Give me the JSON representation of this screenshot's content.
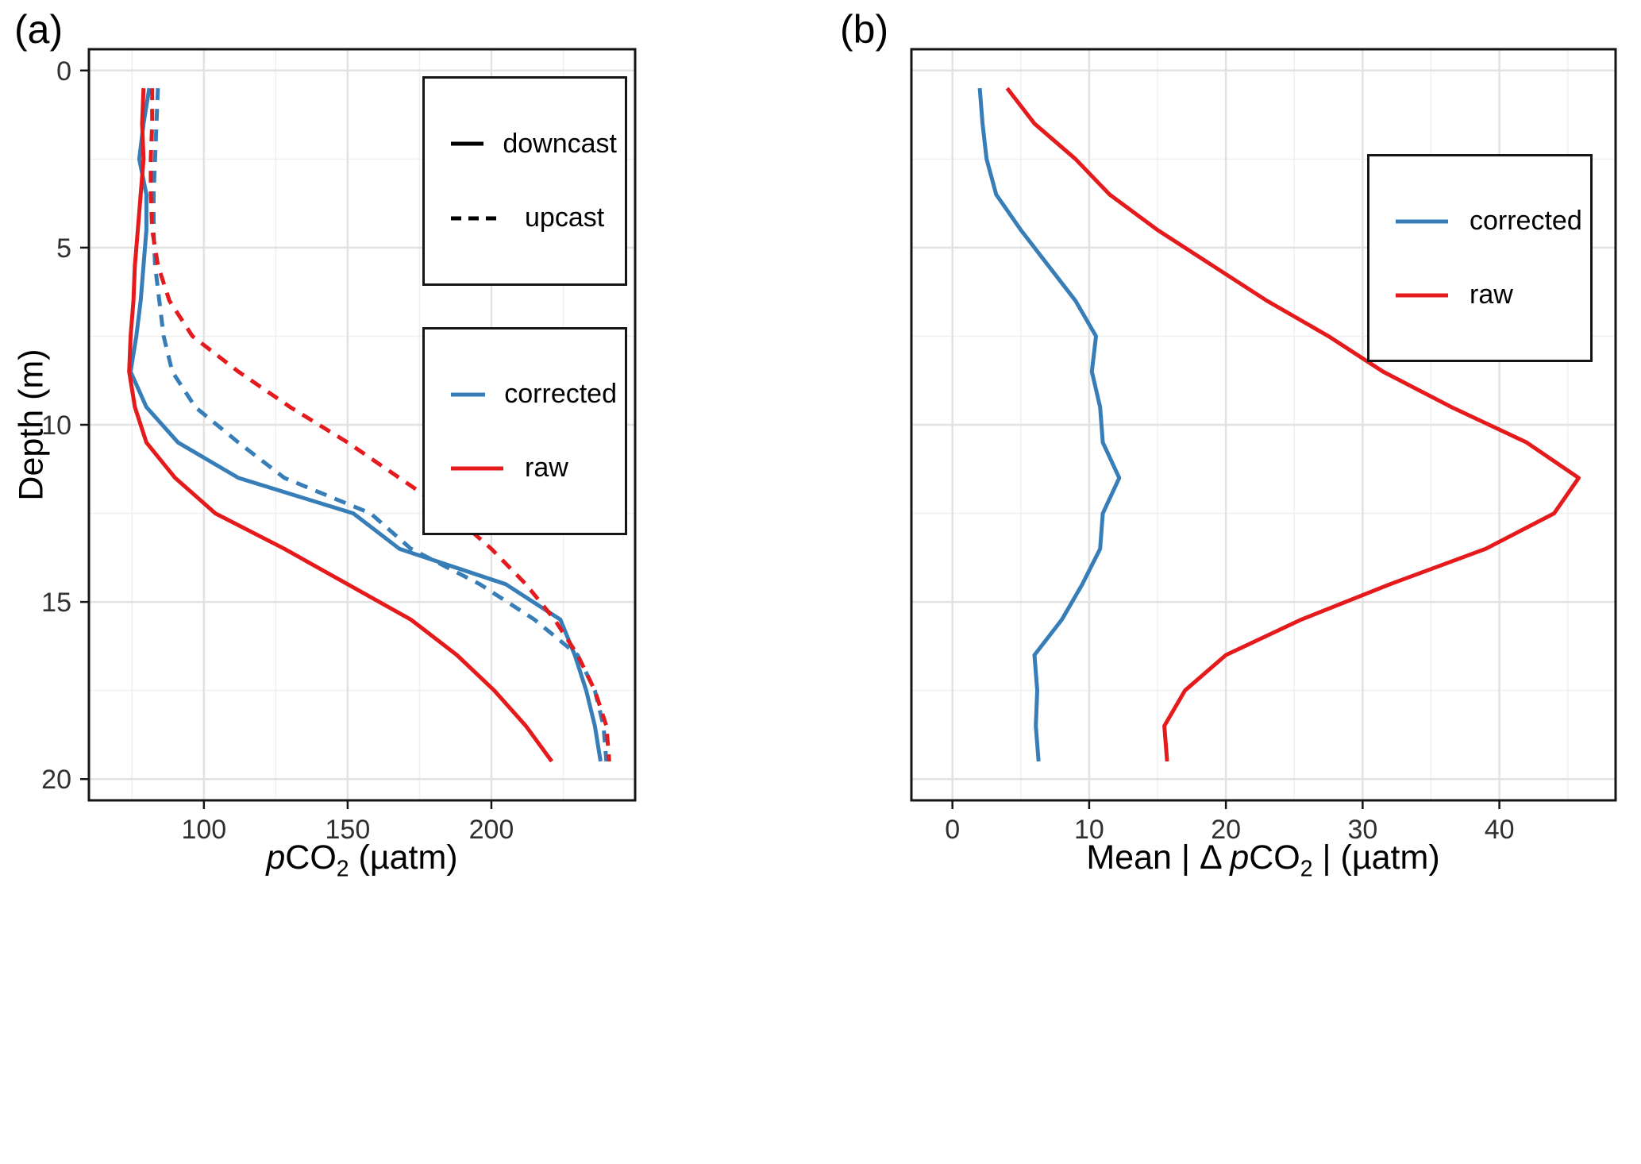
{
  "panel_a": {
    "tag": "(a)",
    "ylabel": "Depth (m)",
    "xlabel": {
      "p": "p",
      "co": "CO",
      "sub": "2",
      "unit": " (µatm)"
    },
    "legend_linetype": {
      "downcast": "downcast",
      "upcast": "upcast"
    },
    "legend_color": {
      "corrected": "corrected",
      "raw": "raw"
    }
  },
  "panel_b": {
    "tag": "(b)",
    "xlabel": {
      "prefix": "Mean | Δ ",
      "p": "p",
      "co": "CO",
      "sub": "2",
      "suffix": " | (µatm)"
    },
    "legend_color": {
      "corrected": "corrected",
      "raw": "raw"
    }
  },
  "colors": {
    "corrected": "#377EB8",
    "raw": "#E41A1C",
    "black": "#000000",
    "grid_major": "#E2E2E2",
    "grid_minor": "#F0F0F0",
    "axis": "#151515",
    "tick_text": "#303030"
  },
  "chart_data": [
    {
      "id": "a",
      "type": "line",
      "title": "(a)",
      "xlabel": "pCO2 (µatm)",
      "ylabel": "Depth (m)",
      "xlim": [
        60,
        250
      ],
      "ylim": [
        -0.6,
        20.6
      ],
      "x_ticks": [
        100,
        150,
        200
      ],
      "x_minor": [
        75,
        125,
        175,
        225
      ],
      "y_ticks": [
        0,
        5,
        10,
        15,
        20
      ],
      "y_minor": [
        2.5,
        7.5,
        12.5,
        17.5
      ],
      "show_y_labels": true,
      "legend_position": "inside-top-right",
      "grid": true,
      "depth": [
        0.5,
        1.5,
        2.5,
        3.5,
        4.5,
        5.5,
        6.5,
        7.5,
        8.5,
        9.5,
        10.5,
        11.5,
        12.5,
        13.5,
        14.5,
        15.5,
        16.5,
        17.5,
        18.5,
        19.5
      ],
      "series": [
        {
          "name": "corrected downcast",
          "color_key": "corrected",
          "dash": false,
          "values": [
            81,
            79,
            77.5,
            80,
            80,
            79,
            78,
            76.5,
            74.5,
            80,
            91,
            112,
            152,
            168,
            205,
            224,
            229,
            233,
            236,
            238
          ]
        },
        {
          "name": "corrected upcast",
          "color_key": "corrected",
          "dash": true,
          "values": [
            84,
            83.5,
            83,
            82.5,
            82.5,
            83,
            84.5,
            86,
            89,
            97,
            112,
            128,
            158,
            172,
            196,
            215,
            230,
            236,
            239,
            240
          ]
        },
        {
          "name": "raw downcast",
          "color_key": "raw",
          "dash": false,
          "values": [
            79,
            78.5,
            79,
            78,
            77,
            76,
            75.5,
            74.5,
            74,
            76,
            80,
            90,
            104,
            128,
            150,
            172,
            188,
            201,
            212,
            221
          ]
        },
        {
          "name": "raw upcast",
          "color_key": "raw",
          "dash": true,
          "values": [
            82,
            82,
            81.5,
            81.5,
            82,
            84,
            88,
            96,
            112,
            130,
            150,
            168,
            186,
            200,
            212,
            222,
            230,
            236,
            240,
            241
          ]
        }
      ]
    },
    {
      "id": "b",
      "type": "line",
      "title": "(b)",
      "xlabel": "Mean | Δ pCO2 | (µatm)",
      "ylabel": "Depth (m)",
      "xlim": [
        -3,
        48.5
      ],
      "ylim": [
        -0.6,
        20.6
      ],
      "x_ticks": [
        0,
        10,
        20,
        30,
        40
      ],
      "x_minor": [
        5,
        15,
        25,
        35,
        45
      ],
      "y_ticks": [
        0,
        5,
        10,
        15,
        20
      ],
      "y_minor": [
        2.5,
        7.5,
        12.5,
        17.5
      ],
      "show_y_labels": false,
      "legend_position": "inside-top-right",
      "grid": true,
      "depth": [
        0.5,
        1.5,
        2.5,
        3.5,
        4.5,
        5.5,
        6.5,
        7.5,
        8.5,
        9.5,
        10.5,
        11.5,
        12.5,
        13.5,
        14.5,
        15.5,
        16.5,
        17.5,
        18.5,
        19.5
      ],
      "series": [
        {
          "name": "corrected",
          "color_key": "corrected",
          "dash": false,
          "values": [
            2,
            2.2,
            2.5,
            3.2,
            5,
            7,
            9,
            10.5,
            10.2,
            10.8,
            11,
            12.2,
            11,
            10.8,
            9.5,
            8,
            6,
            6.2,
            6.1,
            6.3
          ]
        },
        {
          "name": "raw",
          "color_key": "raw",
          "dash": false,
          "values": [
            4,
            6,
            9,
            11.5,
            15,
            19,
            23,
            27.5,
            31.5,
            36.5,
            42,
            45.8,
            44,
            39,
            32,
            25.5,
            20,
            17,
            15.5,
            15.7
          ]
        }
      ]
    }
  ]
}
